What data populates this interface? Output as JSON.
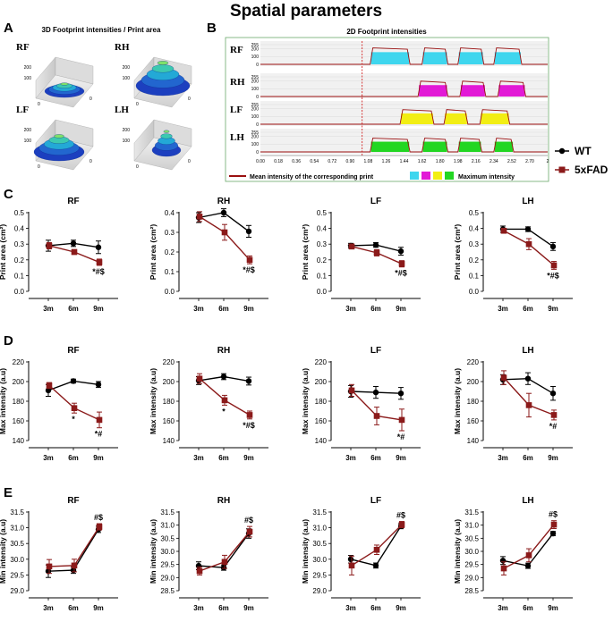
{
  "title": "Spatial parameters",
  "panel_letters": {
    "a": "A",
    "b": "B",
    "c": "C",
    "d": "D",
    "e": "E"
  },
  "panel_a": {
    "title": "3D Footprint intensities / Print area",
    "paws": [
      "RF",
      "RH",
      "LF",
      "LH"
    ],
    "tick_labels": [
      "200",
      "100",
      "0",
      "0"
    ]
  },
  "panel_b": {
    "title": "2D Footprint intensities",
    "rows": [
      "RF",
      "RH",
      "LF",
      "LH"
    ],
    "row_ticks": [
      "255",
      "200",
      "100",
      "0"
    ],
    "x_ticks": [
      "0.00",
      "0.18",
      "0.36",
      "0.54",
      "0.72",
      "0.90",
      "1.08",
      "1.26",
      "1.44",
      "1.62",
      "1.80",
      "1.98",
      "2.16",
      "2.34",
      "2.52",
      "2.70",
      "2"
    ],
    "legend_mean": "Mean intensity of the corresponding  print",
    "legend_max": "Maximum intensity",
    "colors": {
      "RF": "#3fd6ee",
      "RH": "#e21ad6",
      "LF": "#f2ee14",
      "LH": "#22d622"
    }
  },
  "legend": {
    "series": [
      {
        "name": "WT",
        "color": "#000000"
      },
      {
        "name": "5xFAD",
        "color": "#8b1a1a"
      }
    ]
  },
  "chart_data": [
    {
      "type": "line",
      "panel": "C",
      "title": "RF",
      "ylabel": "Print area (cm²)",
      "categories": [
        "3m",
        "6m",
        "9m"
      ],
      "ylim": [
        0,
        0.5
      ],
      "yticks": [
        "0.0",
        "0.1",
        "0.2",
        "0.3",
        "0.4",
        "0.5"
      ],
      "series": [
        {
          "name": "WT",
          "values": [
            0.29,
            0.305,
            0.28
          ],
          "errors": [
            0.035,
            0.02,
            0.04
          ]
        },
        {
          "name": "5xFAD",
          "values": [
            0.29,
            0.25,
            0.185
          ],
          "errors": [
            0.02,
            0.015,
            0.02
          ]
        }
      ],
      "annotations": [
        {
          "category": "9m",
          "text": "*#$"
        }
      ]
    },
    {
      "type": "line",
      "panel": "C",
      "title": "RH",
      "ylabel": "Print area (cm²)",
      "categories": [
        "3m",
        "6m",
        "9m"
      ],
      "ylim": [
        0,
        0.4
      ],
      "yticks": [
        "0.0",
        "0.1",
        "0.2",
        "0.3",
        "0.4"
      ],
      "series": [
        {
          "name": "WT",
          "values": [
            0.375,
            0.4,
            0.305
          ],
          "errors": [
            0.025,
            0.02,
            0.03
          ]
        },
        {
          "name": "5xFAD",
          "values": [
            0.38,
            0.3,
            0.16
          ],
          "errors": [
            0.025,
            0.04,
            0.02
          ]
        }
      ],
      "annotations": [
        {
          "category": "9m",
          "text": "*#$"
        }
      ]
    },
    {
      "type": "line",
      "panel": "C",
      "title": "LF",
      "ylabel": "Print area (cm²)",
      "categories": [
        "3m",
        "6m",
        "9m"
      ],
      "ylim": [
        0,
        0.5
      ],
      "yticks": [
        "0.0",
        "0.1",
        "0.2",
        "0.3",
        "0.4",
        "0.5"
      ],
      "series": [
        {
          "name": "WT",
          "values": [
            0.29,
            0.295,
            0.255
          ],
          "errors": [
            0.015,
            0.015,
            0.025
          ]
        },
        {
          "name": "5xFAD",
          "values": [
            0.285,
            0.245,
            0.175
          ],
          "errors": [
            0.015,
            0.02,
            0.02
          ]
        }
      ],
      "annotations": [
        {
          "category": "9m",
          "text": "*#$"
        }
      ]
    },
    {
      "type": "line",
      "panel": "C",
      "title": "LH",
      "ylabel": "Print area (cm²)",
      "categories": [
        "3m",
        "6m",
        "9m"
      ],
      "ylim": [
        0,
        0.5
      ],
      "yticks": [
        "0.0",
        "0.1",
        "0.2",
        "0.3",
        "0.4",
        "0.5"
      ],
      "series": [
        {
          "name": "WT",
          "values": [
            0.395,
            0.395,
            0.285
          ],
          "errors": [
            0.02,
            0.015,
            0.025
          ]
        },
        {
          "name": "5xFAD",
          "values": [
            0.385,
            0.3,
            0.165
          ],
          "errors": [
            0.015,
            0.035,
            0.025
          ]
        }
      ],
      "annotations": [
        {
          "category": "9m",
          "text": "*#$"
        }
      ]
    },
    {
      "type": "line",
      "panel": "D",
      "title": "RF",
      "ylabel": "Max intensity (a.u)",
      "categories": [
        "3m",
        "6m",
        "9m"
      ],
      "ylim": [
        140,
        220
      ],
      "yticks": [
        "140",
        "160",
        "180",
        "200",
        "220"
      ],
      "series": [
        {
          "name": "WT",
          "values": [
            191,
            200.5,
            197
          ],
          "errors": [
            6,
            2,
            3
          ]
        },
        {
          "name": "5xFAD",
          "values": [
            196,
            173,
            161
          ],
          "errors": [
            3,
            5,
            8
          ]
        }
      ],
      "annotations": [
        {
          "category": "6m",
          "text": "*"
        },
        {
          "category": "9m",
          "text": "*#"
        }
      ]
    },
    {
      "type": "line",
      "panel": "D",
      "title": "RH",
      "ylabel": "Max intensity (a.u)",
      "categories": [
        "3m",
        "6m",
        "9m"
      ],
      "ylim": [
        140,
        220
      ],
      "yticks": [
        "140",
        "160",
        "180",
        "200",
        "220"
      ],
      "series": [
        {
          "name": "WT",
          "values": [
            201,
            205,
            200.5
          ],
          "errors": [
            4,
            3,
            4
          ]
        },
        {
          "name": "5xFAD",
          "values": [
            203,
            181,
            166
          ],
          "errors": [
            5,
            5,
            4
          ]
        }
      ],
      "annotations": [
        {
          "category": "6m",
          "text": "*"
        },
        {
          "category": "9m",
          "text": "*#$"
        }
      ]
    },
    {
      "type": "line",
      "panel": "D",
      "title": "LF",
      "ylabel": "Max intensity (a.u)",
      "categories": [
        "3m",
        "6m",
        "9m"
      ],
      "ylim": [
        140,
        220
      ],
      "yticks": [
        "140",
        "160",
        "180",
        "200",
        "220"
      ],
      "series": [
        {
          "name": "WT",
          "values": [
            190,
            189,
            188
          ],
          "errors": [
            6,
            6,
            6
          ]
        },
        {
          "name": "5xFAD",
          "values": [
            191,
            165,
            161
          ],
          "errors": [
            6,
            9,
            11
          ]
        }
      ],
      "annotations": [
        {
          "category": "9m",
          "text": "*#"
        }
      ]
    },
    {
      "type": "line",
      "panel": "D",
      "title": "LH",
      "ylabel": "Max intensity (a.u)",
      "categories": [
        "3m",
        "6m",
        "9m"
      ],
      "ylim": [
        140,
        220
      ],
      "yticks": [
        "140",
        "160",
        "180",
        "200",
        "220"
      ],
      "series": [
        {
          "name": "WT",
          "values": [
            202,
            203,
            188
          ],
          "errors": [
            5,
            6,
            7
          ]
        },
        {
          "name": "5xFAD",
          "values": [
            204,
            176,
            166
          ],
          "errors": [
            7,
            12,
            5
          ]
        }
      ],
      "annotations": [
        {
          "category": "9m",
          "text": "*#"
        }
      ]
    },
    {
      "type": "line",
      "panel": "E",
      "title": "RF",
      "ylabel": "Min intensity (a.u)",
      "categories": [
        "3m",
        "6m",
        "9m"
      ],
      "ylim": [
        29.0,
        31.5
      ],
      "yticks": [
        "29.0",
        "29.5",
        "30.0",
        "30.5",
        "31.0",
        "31.5"
      ],
      "series": [
        {
          "name": "WT",
          "values": [
            29.62,
            29.65,
            30.95
          ],
          "errors": [
            0.2,
            0.1,
            0.1
          ]
        },
        {
          "name": "5xFAD",
          "values": [
            29.77,
            29.8,
            31.03
          ],
          "errors": [
            0.22,
            0.2,
            0.1
          ]
        }
      ],
      "annotations": [
        {
          "category": "9m",
          "text": "#$"
        }
      ]
    },
    {
      "type": "line",
      "panel": "E",
      "title": "RH",
      "ylabel": "Min intensity (a.u)",
      "categories": [
        "3m",
        "6m",
        "9m"
      ],
      "ylim": [
        28.5,
        31.5
      ],
      "yticks": [
        "28.5",
        "29.0",
        "29.5",
        "30.0",
        "30.5",
        "31.0",
        "31.5"
      ],
      "series": [
        {
          "name": "WT",
          "values": [
            29.45,
            29.38,
            30.68
          ],
          "errors": [
            0.15,
            0.1,
            0.18
          ]
        },
        {
          "name": "5xFAD",
          "values": [
            29.25,
            29.6,
            30.75
          ],
          "errors": [
            0.15,
            0.25,
            0.2
          ]
        }
      ],
      "annotations": [
        {
          "category": "9m",
          "text": "#$"
        }
      ]
    },
    {
      "type": "line",
      "panel": "E",
      "title": "LF",
      "ylabel": "Min intensity (a.u)",
      "categories": [
        "3m",
        "6m",
        "9m"
      ],
      "ylim": [
        29.0,
        31.5
      ],
      "yticks": [
        "29.0",
        "29.5",
        "30.0",
        "30.5",
        "31.0",
        "31.5"
      ],
      "series": [
        {
          "name": "WT",
          "values": [
            30.0,
            29.8,
            31.05
          ],
          "errors": [
            0.12,
            0.08,
            0.08
          ]
        },
        {
          "name": "5xFAD",
          "values": [
            29.8,
            30.3,
            31.1
          ],
          "errors": [
            0.3,
            0.15,
            0.1
          ]
        }
      ],
      "annotations": [
        {
          "category": "9m",
          "text": "#$"
        }
      ]
    },
    {
      "type": "line",
      "panel": "E",
      "title": "LH",
      "ylabel": "Min intensity (a.u)",
      "categories": [
        "3m",
        "6m",
        "9m"
      ],
      "ylim": [
        28.5,
        31.5
      ],
      "yticks": [
        "28.5",
        "29.0",
        "29.5",
        "30.0",
        "30.5",
        "31.0",
        "31.5"
      ],
      "series": [
        {
          "name": "WT",
          "values": [
            29.65,
            29.45,
            30.68
          ],
          "errors": [
            0.15,
            0.1,
            0.08
          ]
        },
        {
          "name": "5xFAD",
          "values": [
            29.35,
            29.85,
            31.02
          ],
          "errors": [
            0.25,
            0.25,
            0.15
          ]
        }
      ],
      "annotations": [
        {
          "category": "9m",
          "text": "#$"
        }
      ]
    }
  ]
}
